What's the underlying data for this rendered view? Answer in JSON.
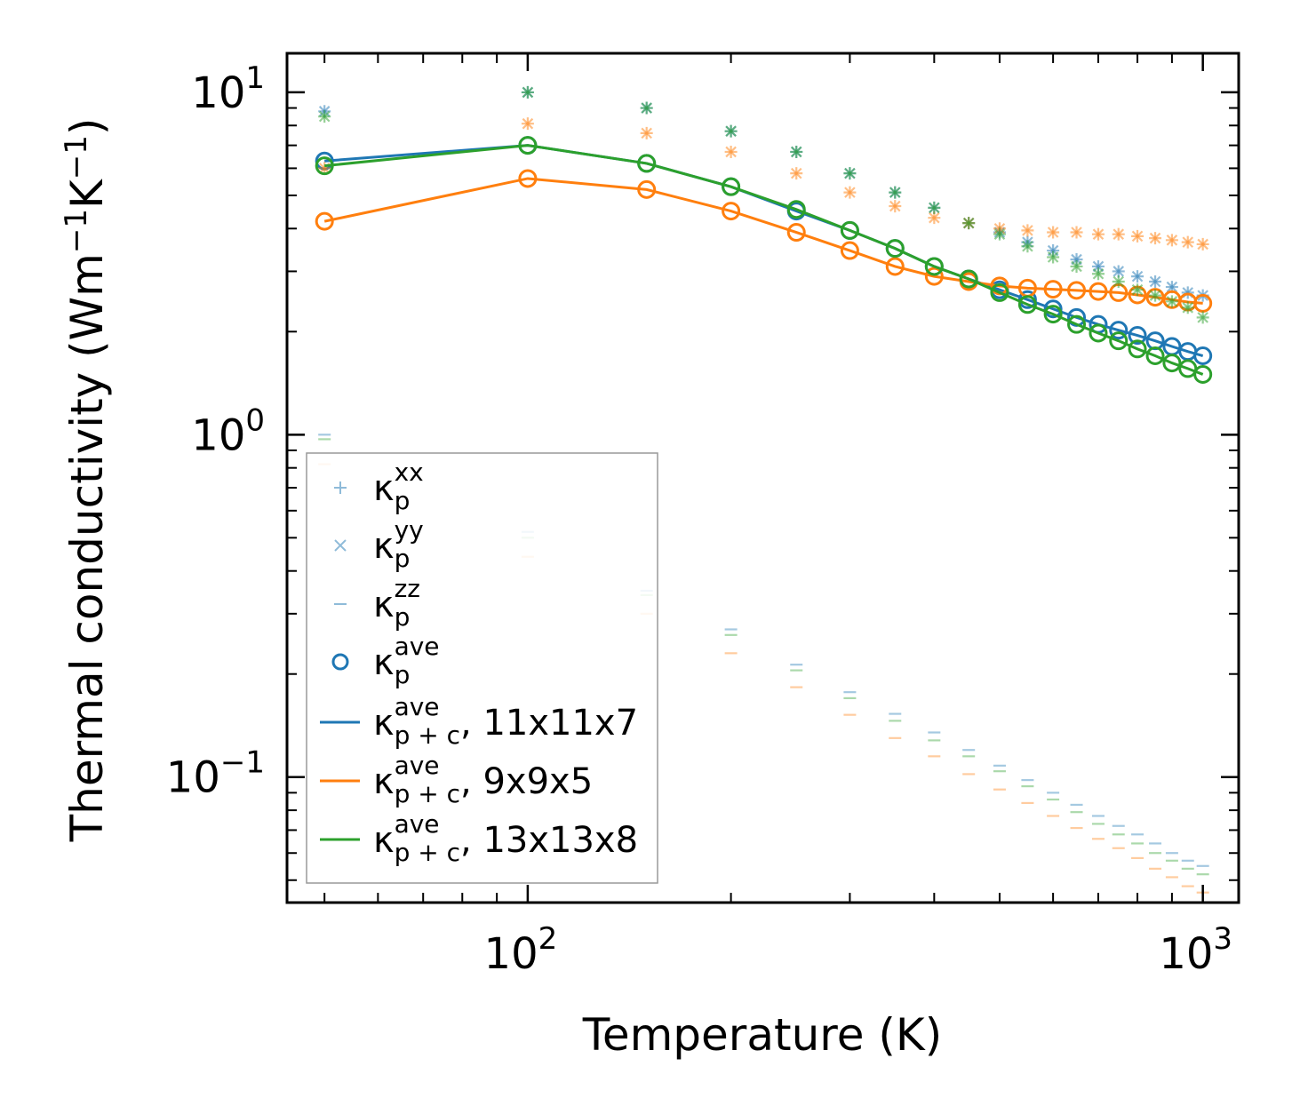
{
  "chart_data": {
    "type": "scatter",
    "scale": "log-log",
    "xlabel": "Temperature (K)",
    "ylabel": "Thermal conductivity (Wm⁻¹K⁻¹)",
    "ylabel_parts": {
      "main": "Thermal conductivity (Wm",
      "exp1": "−1",
      "mid": "K",
      "exp2": "−1",
      "close": ")"
    },
    "xlim": [
      44,
      1130
    ],
    "ylim": [
      0.043,
      13
    ],
    "x_ticks": [
      {
        "base": "10",
        "exp": "2",
        "value": 100
      },
      {
        "base": "10",
        "exp": "3",
        "value": 1000
      }
    ],
    "y_ticks": [
      {
        "base": "10",
        "exp": "−1",
        "value": 0.1
      },
      {
        "base": "10",
        "exp": "0",
        "value": 1
      },
      {
        "base": "10",
        "exp": "1",
        "value": 10
      }
    ],
    "x": [
      50,
      100,
      150,
      200,
      250,
      300,
      350,
      400,
      450,
      500,
      550,
      600,
      650,
      700,
      750,
      800,
      850,
      900,
      950,
      1000
    ],
    "colors": {
      "blue": "#1f77b4",
      "orange": "#ff7f0e",
      "green": "#2ca02c"
    },
    "legend": {
      "location": "lower-left",
      "entries": [
        {
          "marker": "plus",
          "symbol": "κ",
          "sub": "p",
          "sup": "xx",
          "suffix": ""
        },
        {
          "marker": "x",
          "symbol": "κ",
          "sub": "p",
          "sup": "yy",
          "suffix": ""
        },
        {
          "marker": "dash",
          "symbol": "κ",
          "sub": "p",
          "sup": "zz",
          "suffix": ""
        },
        {
          "marker": "circle",
          "symbol": "κ",
          "sub": "p",
          "sup": "ave",
          "suffix": ""
        },
        {
          "marker": "line-blue",
          "symbol": "κ",
          "sub": "p + c",
          "sup": "ave",
          "suffix": ", 11x11x7"
        },
        {
          "marker": "line-orange",
          "symbol": "κ",
          "sub": "p + c",
          "sup": "ave",
          "suffix": ", 9x9x5"
        },
        {
          "marker": "line-green",
          "symbol": "κ",
          "sub": "p + c",
          "sup": "ave",
          "suffix": ", 13x13x8"
        }
      ]
    },
    "series": [
      {
        "name": "11x11x7",
        "color": "#1f77b4",
        "kxx": [
          8.8,
          10.0,
          9.0,
          7.7,
          6.7,
          5.8,
          5.1,
          4.6,
          4.15,
          3.9,
          3.65,
          3.45,
          3.25,
          3.1,
          3.0,
          2.9,
          2.8,
          2.7,
          2.6,
          2.55
        ],
        "kyy": [
          8.8,
          10.0,
          9.0,
          7.7,
          6.7,
          5.8,
          5.1,
          4.6,
          4.15,
          3.9,
          3.65,
          3.45,
          3.25,
          3.1,
          3.0,
          2.9,
          2.8,
          2.7,
          2.6,
          2.55
        ],
        "kzz": [
          1.0,
          0.52,
          0.35,
          0.27,
          0.213,
          0.177,
          0.153,
          0.135,
          0.12,
          0.108,
          0.098,
          0.09,
          0.083,
          0.077,
          0.072,
          0.068,
          0.064,
          0.06,
          0.057,
          0.055
        ],
        "kave_p": [
          6.3,
          7.0,
          6.2,
          5.3,
          4.5,
          3.95,
          3.5,
          3.1,
          2.85,
          2.65,
          2.48,
          2.33,
          2.2,
          2.1,
          2.02,
          1.95,
          1.88,
          1.81,
          1.75,
          1.7
        ],
        "kave_pc": [
          6.3,
          7.0,
          6.2,
          5.3,
          4.5,
          3.95,
          3.5,
          3.1,
          2.85,
          2.65,
          2.48,
          2.33,
          2.2,
          2.1,
          2.02,
          1.95,
          1.88,
          1.81,
          1.75,
          1.7
        ]
      },
      {
        "name": "9x9x5",
        "color": "#ff7f0e",
        "kxx": [
          6.0,
          8.1,
          7.6,
          6.7,
          5.8,
          5.1,
          4.65,
          4.3,
          4.15,
          4.0,
          3.95,
          3.9,
          3.9,
          3.85,
          3.85,
          3.8,
          3.75,
          3.7,
          3.65,
          3.6
        ],
        "kyy": [
          6.0,
          8.1,
          7.6,
          6.7,
          5.8,
          5.1,
          4.65,
          4.3,
          4.15,
          4.0,
          3.95,
          3.9,
          3.9,
          3.85,
          3.85,
          3.8,
          3.75,
          3.7,
          3.65,
          3.6
        ],
        "kzz": [
          0.82,
          0.44,
          0.3,
          0.23,
          0.183,
          0.152,
          0.13,
          0.115,
          0.102,
          0.092,
          0.084,
          0.077,
          0.071,
          0.066,
          0.062,
          0.058,
          0.054,
          0.051,
          0.048,
          0.046
        ],
        "kave_p": [
          4.2,
          5.6,
          5.2,
          4.5,
          3.9,
          3.45,
          3.1,
          2.9,
          2.8,
          2.72,
          2.68,
          2.66,
          2.64,
          2.62,
          2.6,
          2.56,
          2.52,
          2.48,
          2.44,
          2.42
        ],
        "kave_pc": [
          4.2,
          5.6,
          5.2,
          4.5,
          3.9,
          3.45,
          3.1,
          2.9,
          2.8,
          2.72,
          2.68,
          2.66,
          2.64,
          2.62,
          2.6,
          2.56,
          2.52,
          2.48,
          2.44,
          2.42
        ]
      },
      {
        "name": "13x13x8",
        "color": "#2ca02c",
        "kxx": [
          8.5,
          10.0,
          9.0,
          7.7,
          6.7,
          5.8,
          5.1,
          4.6,
          4.15,
          3.85,
          3.55,
          3.3,
          3.1,
          2.95,
          2.8,
          2.65,
          2.55,
          2.45,
          2.35,
          2.2
        ],
        "kyy": [
          8.5,
          10.0,
          9.0,
          7.7,
          6.7,
          5.8,
          5.1,
          4.6,
          4.15,
          3.85,
          3.55,
          3.3,
          3.1,
          2.95,
          2.8,
          2.65,
          2.55,
          2.45,
          2.35,
          2.2
        ],
        "kzz": [
          0.97,
          0.5,
          0.34,
          0.26,
          0.205,
          0.17,
          0.146,
          0.128,
          0.115,
          0.104,
          0.094,
          0.086,
          0.079,
          0.073,
          0.068,
          0.064,
          0.06,
          0.057,
          0.054,
          0.052
        ],
        "kave_p": [
          6.1,
          7.0,
          6.2,
          5.3,
          4.55,
          3.95,
          3.5,
          3.1,
          2.85,
          2.6,
          2.4,
          2.25,
          2.1,
          1.98,
          1.88,
          1.78,
          1.7,
          1.62,
          1.56,
          1.5
        ],
        "kave_pc": [
          6.1,
          7.0,
          6.2,
          5.3,
          4.55,
          3.95,
          3.5,
          3.1,
          2.85,
          2.6,
          2.4,
          2.25,
          2.1,
          1.98,
          1.88,
          1.78,
          1.7,
          1.62,
          1.56,
          1.5
        ]
      }
    ]
  }
}
